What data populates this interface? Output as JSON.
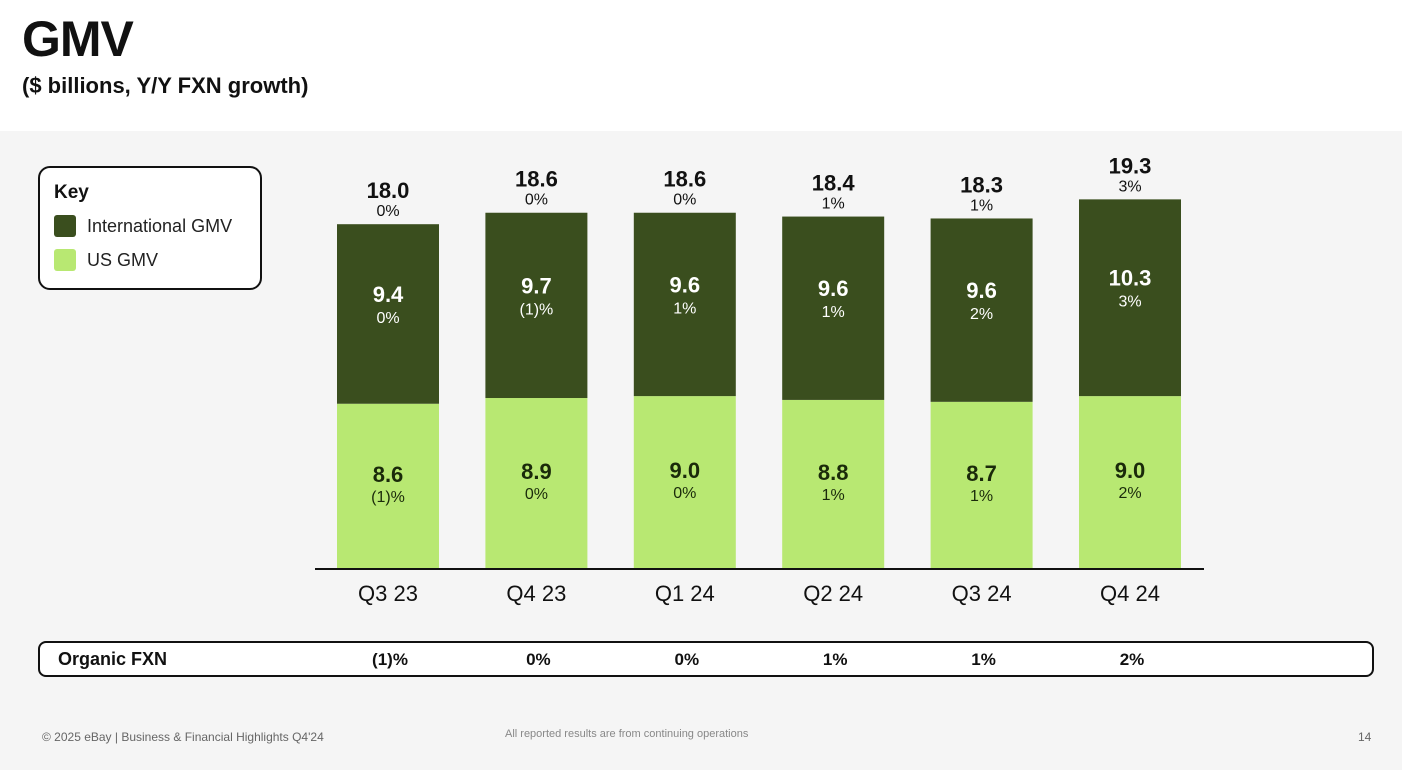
{
  "header": {
    "title": "GMV",
    "subtitle": "($ billions, Y/Y FXN growth)"
  },
  "legend": {
    "title": "Key",
    "items": [
      {
        "label": "International GMV",
        "color": "#3a4e1e"
      },
      {
        "label": "US GMV",
        "color": "#b8e872"
      }
    ]
  },
  "chart_data": {
    "type": "bar",
    "stacked": true,
    "title": "GMV",
    "subtitle": "($ billions, Y/Y FXN growth)",
    "categories": [
      "Q3 23",
      "Q4 23",
      "Q1 24",
      "Q2 24",
      "Q3 24",
      "Q4 24"
    ],
    "totals": [
      18.0,
      18.6,
      18.6,
      18.4,
      18.3,
      19.3
    ],
    "total_labels": [
      "18.0",
      "18.6",
      "18.6",
      "18.4",
      "18.3",
      "19.3"
    ],
    "total_growth": [
      "0%",
      "0%",
      "0%",
      "1%",
      "1%",
      "3%"
    ],
    "series": [
      {
        "name": "US GMV",
        "color": "#b8e872",
        "values": [
          8.6,
          8.9,
          9.0,
          8.8,
          8.7,
          9.0
        ],
        "value_labels": [
          "8.6",
          "8.9",
          "9.0",
          "8.8",
          "8.7",
          "9.0"
        ],
        "growth": [
          "(1)%",
          "0%",
          "0%",
          "1%",
          "1%",
          "2%"
        ]
      },
      {
        "name": "International GMV",
        "color": "#3a4e1e",
        "values": [
          9.4,
          9.7,
          9.6,
          9.6,
          9.6,
          10.3
        ],
        "value_labels": [
          "9.4",
          "9.7",
          "9.6",
          "9.6",
          "9.6",
          "10.3"
        ],
        "growth": [
          "0%",
          "(1)%",
          "1%",
          "1%",
          "2%",
          "3%"
        ]
      }
    ],
    "ylim": [
      0,
      19.3
    ],
    "xlabel": "",
    "ylabel": "",
    "legend_position": "top-left"
  },
  "organic": {
    "label": "Organic FXN",
    "values": [
      "(1)%",
      "0%",
      "0%",
      "1%",
      "1%",
      "2%"
    ]
  },
  "footer": {
    "copyright": "© 2025 eBay | Business & Financial Highlights Q4'24",
    "note": "All reported results are from continuing operations",
    "page": "14"
  }
}
